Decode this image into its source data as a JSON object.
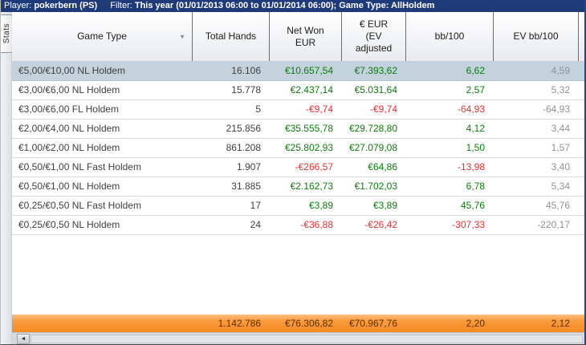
{
  "titlebar": {
    "player_label": "Player:",
    "player_value": "pokerbern (PS)",
    "filter_label": "Filter:",
    "filter_value": "This year (01/01/2013 06:00 to 01/01/2014 06:00); Game Type: AllHoldem"
  },
  "sidebar": {
    "tab": "Stats"
  },
  "icons": {
    "sort_down": "▼",
    "scroll_left": "◄"
  },
  "colors": {
    "titlebar_bg": "#1e3a78",
    "selected_row_bg": "#c4d2dd",
    "totals_orange": "#f58a20",
    "positive": "#0a7d0a",
    "negative": "#e03232",
    "ev_muted": "#8e9398"
  },
  "table": {
    "columns": [
      "Game Type",
      "Total Hands",
      "Net Won\nEUR",
      "€ EUR\n(EV\nadjusted",
      "bb/100",
      "EV bb/100"
    ],
    "rows": [
      {
        "game_type": "€5,00/€10,00 NL Holdem",
        "hands": "16.106",
        "net_won": "€10.657,54",
        "ev_adjusted": "€7.393,62",
        "bb100": "6,62",
        "ev_bb100": "4,59",
        "selected": true
      },
      {
        "game_type": "€3,00/€6,00 NL Holdem",
        "hands": "15.778",
        "net_won": "€2.437,14",
        "ev_adjusted": "€5.031,64",
        "bb100": "2,57",
        "ev_bb100": "5,32"
      },
      {
        "game_type": "€3,00/€6,00 FL Holdem",
        "hands": "5",
        "net_won": "-€9,74",
        "ev_adjusted": "-€9,74",
        "bb100": "-64,93",
        "ev_bb100": "-64,93"
      },
      {
        "game_type": "€2,00/€4,00 NL Holdem",
        "hands": "215.856",
        "net_won": "€35.555,78",
        "ev_adjusted": "€29.728,80",
        "bb100": "4,12",
        "ev_bb100": "3,44"
      },
      {
        "game_type": "€1,00/€2,00 NL Holdem",
        "hands": "861.208",
        "net_won": "€25.802,93",
        "ev_adjusted": "€27.079,08",
        "bb100": "1,50",
        "ev_bb100": "1,57"
      },
      {
        "game_type": "€0,50/€1,00 NL Fast Holdem",
        "hands": "1.907",
        "net_won": "-€266,57",
        "ev_adjusted": "€64,86",
        "bb100": "-13,98",
        "ev_bb100": "3,40"
      },
      {
        "game_type": "€0,50/€1,00 NL Holdem",
        "hands": "31.885",
        "net_won": "€2.162,73",
        "ev_adjusted": "€1.702,03",
        "bb100": "6,78",
        "ev_bb100": "5,34"
      },
      {
        "game_type": "€0,25/€0,50 NL Fast Holdem",
        "hands": "17",
        "net_won": "€3,89",
        "ev_adjusted": "€3,89",
        "bb100": "45,76",
        "ev_bb100": "45,76"
      },
      {
        "game_type": "€0,25/€0,50 NL Holdem",
        "hands": "24",
        "net_won": "-€36,88",
        "ev_adjusted": "-€26,42",
        "bb100": "-307,33",
        "ev_bb100": "-220,17"
      }
    ],
    "totals": {
      "hands": "1.142.786",
      "net_won": "€76.306,82",
      "ev_adjusted": "€70.967,76",
      "bb100": "2,20",
      "ev_bb100": "2,12"
    }
  }
}
